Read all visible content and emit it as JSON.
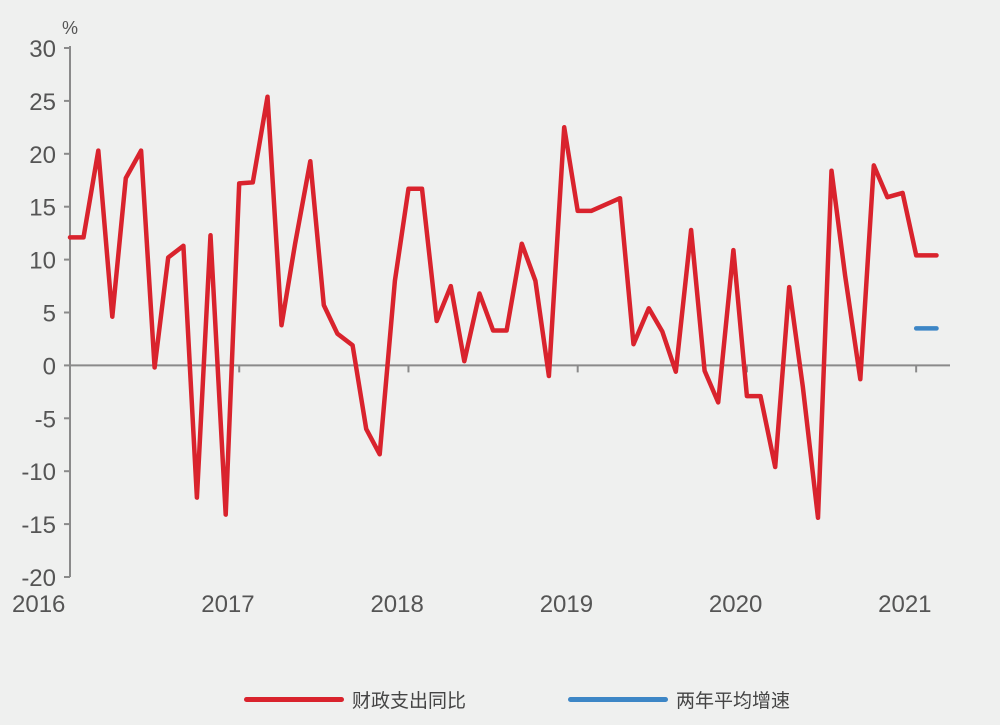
{
  "chart_data": {
    "type": "line",
    "unit": "%",
    "ylim": [
      -20,
      30
    ],
    "yticks": [
      30,
      25,
      20,
      15,
      10,
      5,
      0,
      -5,
      -10,
      -15,
      -20
    ],
    "xticks": [
      "2016",
      "2017",
      "2018",
      "2019",
      "2020",
      "2021"
    ],
    "series": [
      {
        "name": "财政支出同比",
        "color": "#d9232d",
        "points": [
          [
            2016.0,
            12.1
          ],
          [
            2016.08,
            12.1
          ],
          [
            2016.167,
            20.3
          ],
          [
            2016.25,
            4.6
          ],
          [
            2016.33,
            17.7
          ],
          [
            2016.42,
            20.3
          ],
          [
            2016.5,
            -0.2
          ],
          [
            2016.58,
            10.2
          ],
          [
            2016.67,
            11.3
          ],
          [
            2016.75,
            -12.5
          ],
          [
            2016.83,
            12.3
          ],
          [
            2016.92,
            -14.1
          ],
          [
            2017.0,
            17.2
          ],
          [
            2017.08,
            17.3
          ],
          [
            2017.167,
            25.4
          ],
          [
            2017.25,
            3.8
          ],
          [
            2017.33,
            11.5
          ],
          [
            2017.42,
            19.3
          ],
          [
            2017.5,
            5.7
          ],
          [
            2017.58,
            3.0
          ],
          [
            2017.67,
            1.9
          ],
          [
            2017.75,
            -6.0
          ],
          [
            2017.83,
            -8.4
          ],
          [
            2017.92,
            8.0
          ],
          [
            2018.0,
            16.7
          ],
          [
            2018.08,
            16.7
          ],
          [
            2018.167,
            4.2
          ],
          [
            2018.25,
            7.5
          ],
          [
            2018.33,
            0.4
          ],
          [
            2018.42,
            6.8
          ],
          [
            2018.5,
            3.3
          ],
          [
            2018.58,
            3.3
          ],
          [
            2018.67,
            11.5
          ],
          [
            2018.75,
            8.0
          ],
          [
            2018.83,
            -1.0
          ],
          [
            2018.92,
            22.5
          ],
          [
            2019.0,
            14.6
          ],
          [
            2019.08,
            14.6
          ],
          [
            2019.25,
            15.8
          ],
          [
            2019.33,
            2.0
          ],
          [
            2019.42,
            5.4
          ],
          [
            2019.5,
            3.2
          ],
          [
            2019.58,
            -0.6
          ],
          [
            2019.67,
            12.8
          ],
          [
            2019.75,
            -0.5
          ],
          [
            2019.83,
            -3.5
          ],
          [
            2019.92,
            10.9
          ],
          [
            2020.0,
            -2.9
          ],
          [
            2020.08,
            -2.9
          ],
          [
            2020.167,
            -9.6
          ],
          [
            2020.25,
            7.4
          ],
          [
            2020.33,
            -2.0
          ],
          [
            2020.42,
            -14.4
          ],
          [
            2020.5,
            18.4
          ],
          [
            2020.58,
            8.5
          ],
          [
            2020.67,
            -1.3
          ],
          [
            2020.75,
            18.9
          ],
          [
            2020.83,
            15.9
          ],
          [
            2020.92,
            16.3
          ],
          [
            2021.0,
            10.4
          ],
          [
            2021.08,
            10.4
          ],
          [
            2021.12,
            10.4
          ]
        ]
      },
      {
        "name": "两年平均增速",
        "color": "#3d86c6",
        "points": [
          [
            2021.0,
            3.5
          ],
          [
            2021.12,
            3.5
          ]
        ]
      }
    ]
  },
  "legend": {
    "item1": "财政支出同比",
    "item2": "两年平均增速"
  }
}
